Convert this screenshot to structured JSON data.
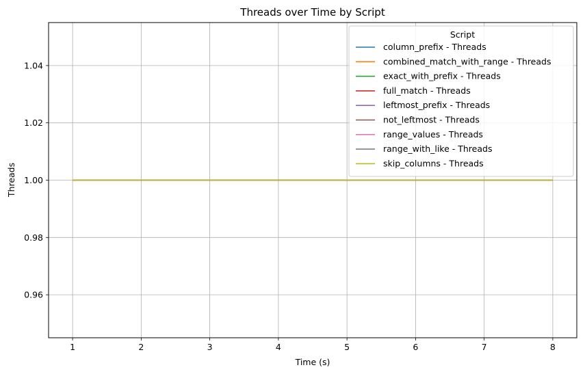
{
  "chart_data": {
    "type": "line",
    "title": "Threads over Time by Script",
    "xlabel": "Time (s)",
    "ylabel": "Threads",
    "x": [
      1,
      2,
      3,
      4,
      5,
      6,
      7,
      8
    ],
    "xlim": [
      0.65,
      8.35
    ],
    "ylim": [
      0.945,
      1.055
    ],
    "xticks": [
      1,
      2,
      3,
      4,
      5,
      6,
      7,
      8
    ],
    "yticks": [
      0.96,
      0.98,
      1.0,
      1.02,
      1.04
    ],
    "ytick_labels": [
      "0.96",
      "0.98",
      "1.00",
      "1.02",
      "1.04"
    ],
    "grid": true,
    "legend": {
      "title": "Script",
      "placement": "top-right"
    },
    "series": [
      {
        "name": "column_prefix - Threads",
        "color": "#1f77b4",
        "values": [
          1,
          1,
          1,
          1,
          1,
          1,
          1,
          1
        ]
      },
      {
        "name": "combined_match_with_range - Threads",
        "color": "#ff7f0e",
        "values": [
          1,
          1,
          1,
          1,
          1,
          1,
          1,
          1
        ]
      },
      {
        "name": "exact_with_prefix - Threads",
        "color": "#2ca02c",
        "values": [
          1,
          1,
          1,
          1,
          1,
          1,
          1,
          1
        ]
      },
      {
        "name": "full_match - Threads",
        "color": "#d62728",
        "values": [
          1,
          1,
          1,
          1,
          1,
          1,
          1,
          1
        ]
      },
      {
        "name": "leftmost_prefix - Threads",
        "color": "#9467bd",
        "values": [
          1,
          1,
          1,
          1,
          1,
          1,
          1,
          1
        ]
      },
      {
        "name": "not_leftmost - Threads",
        "color": "#8c564b",
        "values": [
          1,
          1,
          1,
          1,
          1,
          1,
          1,
          1
        ]
      },
      {
        "name": "range_values - Threads",
        "color": "#e377c2",
        "values": [
          1,
          1,
          1,
          1,
          1,
          1,
          1,
          1
        ]
      },
      {
        "name": "range_with_like - Threads",
        "color": "#7f7f7f",
        "values": [
          1,
          1,
          1,
          1,
          1,
          1,
          1,
          1
        ]
      },
      {
        "name": "skip_columns - Threads",
        "color": "#bcbd22",
        "values": [
          1,
          1,
          1,
          1,
          1,
          1,
          1,
          1
        ]
      }
    ]
  }
}
